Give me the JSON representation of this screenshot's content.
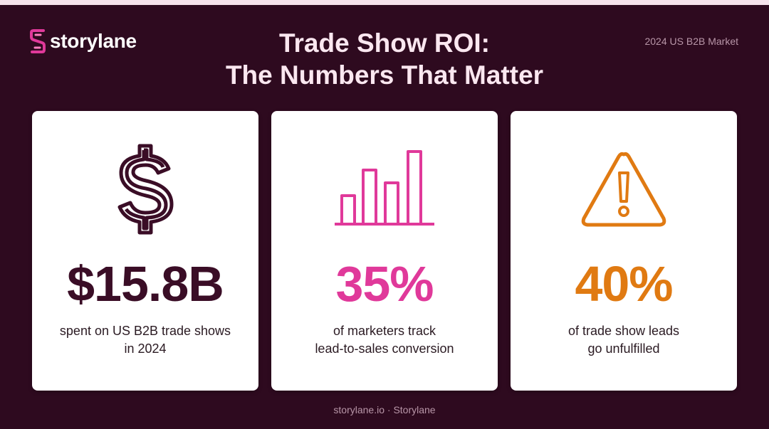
{
  "brand": {
    "name": "storylane",
    "accent": "#e0399a"
  },
  "market_label": "2024 US B2B Market",
  "title": {
    "line1": "Trade Show ROI:",
    "line2": "The Numbers That Matter"
  },
  "cards": [
    {
      "icon": "dollar-sign-icon",
      "stat": "$15.8B",
      "stat_color": "#3a0d26",
      "desc_line1": "spent on US B2B trade shows",
      "desc_line2": "in 2024"
    },
    {
      "icon": "bar-chart-icon",
      "stat": "35%",
      "stat_color": "#e0399a",
      "desc_line1": "of marketers track",
      "desc_line2": "lead-to-sales conversion"
    },
    {
      "icon": "warning-icon",
      "stat": "40%",
      "stat_color": "#e07a12",
      "desc_line1": "of trade show leads",
      "desc_line2": "go unfulfilled"
    }
  ],
  "footer": "storylane.io · Storylane"
}
